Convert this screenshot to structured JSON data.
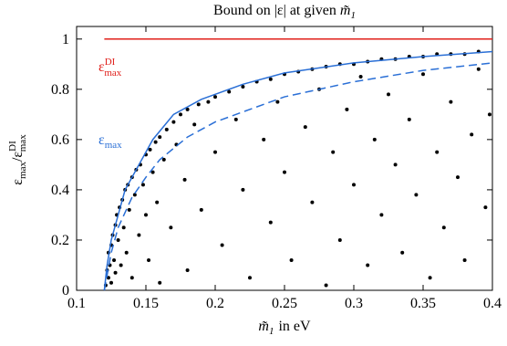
{
  "chart_data": {
    "type": "scatter",
    "title": {
      "text": "Bound on |ε| at given",
      "var": "m̃",
      "sub": "1"
    },
    "xlabel": {
      "var": "m̃",
      "sub": "1",
      "text": "in eV"
    },
    "ylabel": {
      "base": "ε",
      "sub": "max",
      "sep": "/",
      "base2": "ε",
      "sub2": "max",
      "sup2": "DI"
    },
    "annotations": [
      {
        "base": "ε",
        "sub": "max",
        "sup": "DI",
        "color": "#e0201b"
      },
      {
        "base": "ε",
        "sub": "max",
        "color": "#2a6fd6"
      }
    ],
    "xlim": [
      0.1,
      0.4
    ],
    "ylim": [
      0,
      1.05
    ],
    "xticks": [
      0.1,
      0.15,
      0.2,
      0.25,
      0.3,
      0.35,
      0.4
    ],
    "yticks": [
      0,
      0.2,
      0.4,
      0.6,
      0.8,
      1
    ],
    "series": [
      {
        "kind": "points",
        "color": "#000000",
        "x": [
          0.121,
          0.122,
          0.123,
          0.123,
          0.124,
          0.125,
          0.125,
          0.126,
          0.127,
          0.128,
          0.128,
          0.129,
          0.13,
          0.131,
          0.132,
          0.133,
          0.134,
          0.135,
          0.136,
          0.137,
          0.138,
          0.14,
          0.14,
          0.142,
          0.143,
          0.145,
          0.146,
          0.148,
          0.15,
          0.15,
          0.152,
          0.153,
          0.155,
          0.157,
          0.158,
          0.16,
          0.16,
          0.163,
          0.165,
          0.168,
          0.17,
          0.172,
          0.175,
          0.178,
          0.18,
          0.18,
          0.185,
          0.188,
          0.19,
          0.195,
          0.2,
          0.2,
          0.205,
          0.21,
          0.215,
          0.22,
          0.22,
          0.225,
          0.23,
          0.235,
          0.24,
          0.24,
          0.245,
          0.25,
          0.25,
          0.255,
          0.26,
          0.265,
          0.27,
          0.27,
          0.275,
          0.28,
          0.28,
          0.285,
          0.29,
          0.29,
          0.295,
          0.3,
          0.3,
          0.305,
          0.31,
          0.31,
          0.315,
          0.32,
          0.32,
          0.325,
          0.33,
          0.33,
          0.335,
          0.34,
          0.34,
          0.345,
          0.35,
          0.35,
          0.355,
          0.36,
          0.36,
          0.365,
          0.37,
          0.37,
          0.375,
          0.38,
          0.38,
          0.385,
          0.39,
          0.39,
          0.395,
          0.398
        ],
        "values": [
          0.02,
          0.08,
          0.05,
          0.15,
          0.1,
          0.18,
          0.03,
          0.22,
          0.12,
          0.26,
          0.07,
          0.3,
          0.2,
          0.33,
          0.1,
          0.36,
          0.25,
          0.4,
          0.15,
          0.42,
          0.32,
          0.45,
          0.05,
          0.38,
          0.48,
          0.22,
          0.5,
          0.42,
          0.54,
          0.3,
          0.12,
          0.56,
          0.47,
          0.59,
          0.35,
          0.61,
          0.03,
          0.52,
          0.64,
          0.25,
          0.67,
          0.58,
          0.7,
          0.44,
          0.72,
          0.08,
          0.66,
          0.74,
          0.32,
          0.75,
          0.77,
          0.55,
          0.18,
          0.79,
          0.68,
          0.81,
          0.4,
          0.05,
          0.83,
          0.6,
          0.84,
          0.27,
          0.75,
          0.86,
          0.47,
          0.12,
          0.87,
          0.65,
          0.88,
          0.35,
          0.8,
          0.89,
          0.02,
          0.55,
          0.9,
          0.2,
          0.72,
          0.9,
          0.42,
          0.85,
          0.91,
          0.1,
          0.6,
          0.92,
          0.3,
          0.78,
          0.92,
          0.5,
          0.15,
          0.93,
          0.68,
          0.38,
          0.93,
          0.86,
          0.05,
          0.94,
          0.55,
          0.25,
          0.94,
          0.75,
          0.45,
          0.94,
          0.12,
          0.62,
          0.95,
          0.88,
          0.33,
          0.7
        ]
      },
      {
        "kind": "line",
        "color": "#e0201b",
        "x": [
          0.12,
          0.4
        ],
        "values": [
          1,
          1
        ]
      },
      {
        "kind": "line",
        "color": "#2a6fd6",
        "x": [
          0.12,
          0.122,
          0.125,
          0.13,
          0.135,
          0.145,
          0.155,
          0.17,
          0.19,
          0.2,
          0.22,
          0.25,
          0.3,
          0.35,
          0.4
        ],
        "values": [
          0,
          0.1,
          0.2,
          0.3,
          0.4,
          0.5,
          0.6,
          0.7,
          0.76,
          0.78,
          0.82,
          0.865,
          0.905,
          0.93,
          0.95
        ]
      },
      {
        "kind": "line",
        "color": "#2a6fd6",
        "dashed": true,
        "x": [
          0.12,
          0.125,
          0.13,
          0.14,
          0.15,
          0.16,
          0.18,
          0.2,
          0.25,
          0.3,
          0.35,
          0.4
        ],
        "values": [
          0,
          0.15,
          0.25,
          0.37,
          0.45,
          0.52,
          0.61,
          0.67,
          0.77,
          0.83,
          0.875,
          0.905
        ]
      }
    ]
  }
}
